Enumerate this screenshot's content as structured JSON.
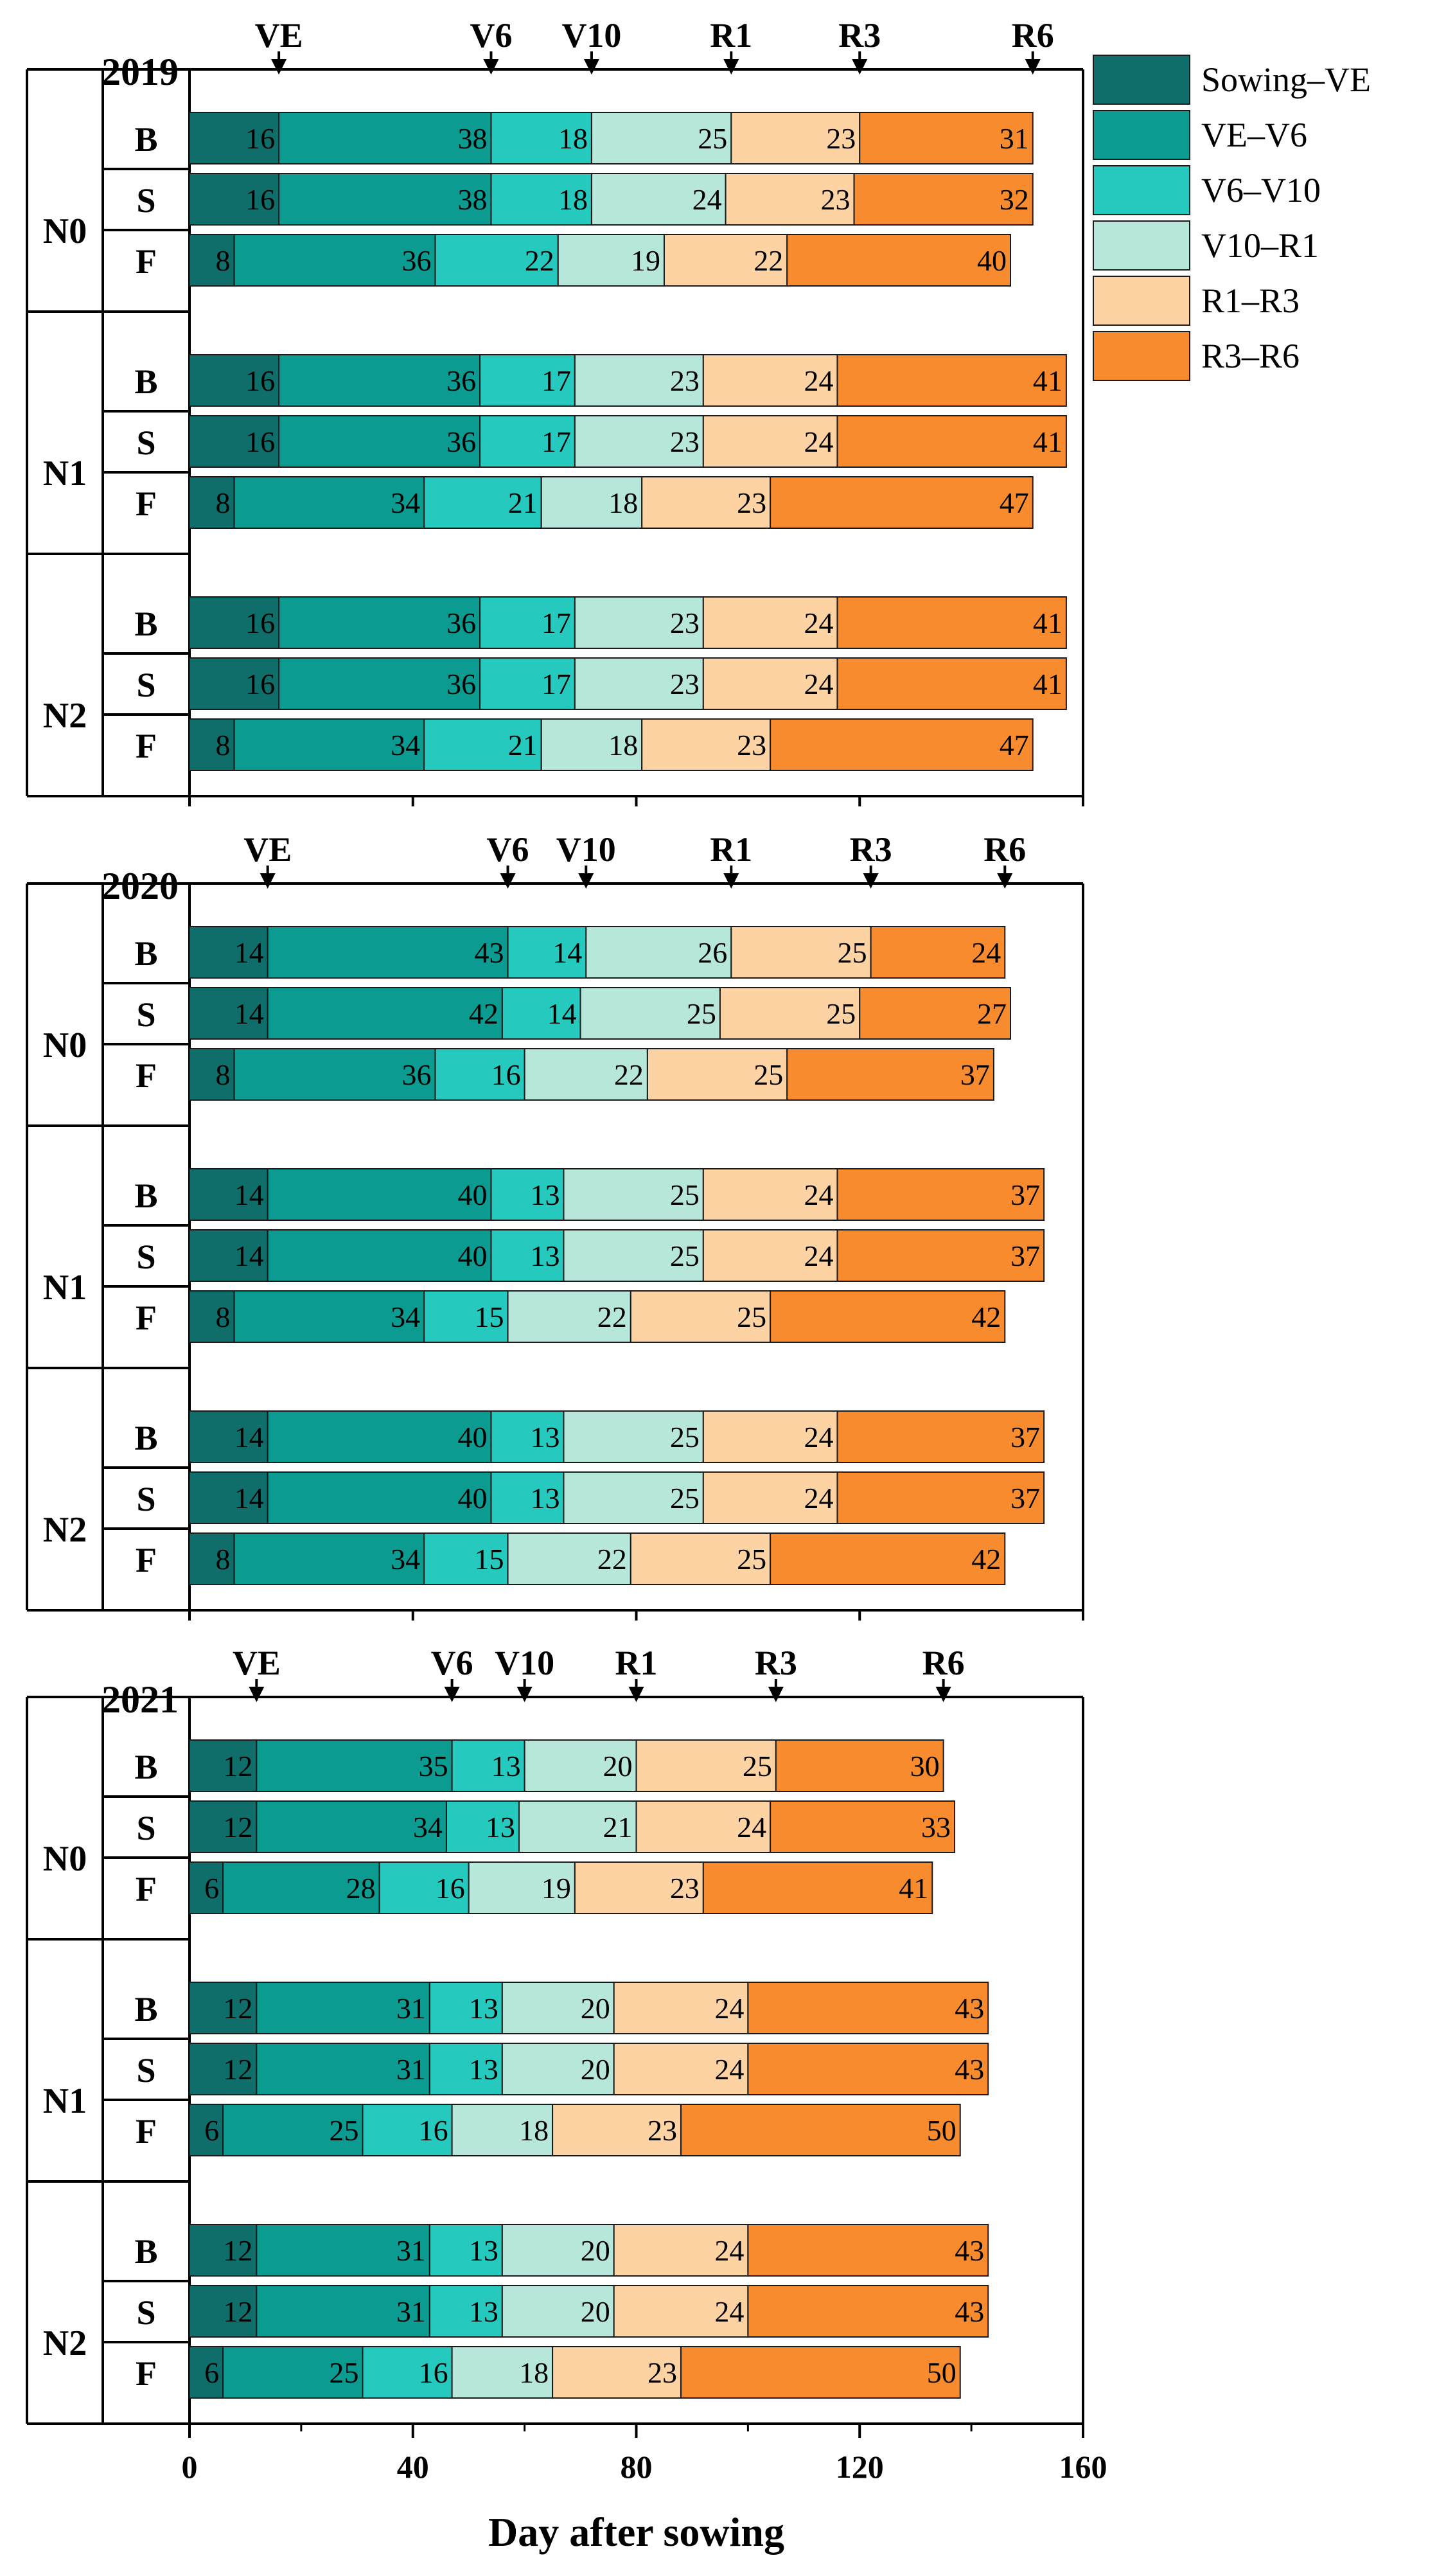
{
  "chart_data": {
    "type": "bar",
    "orientation": "horizontal-stacked",
    "xlabel": "Day after sowing",
    "xlim": [
      0,
      160
    ],
    "xticks": [
      "0",
      "40",
      "80",
      "120",
      "160"
    ],
    "xtick_values": [
      0,
      40,
      80,
      120,
      160
    ],
    "legend_position": "top-right",
    "phases": [
      {
        "name": "Sowing–VE",
        "color": "#0f6e6a"
      },
      {
        "name": "VE–V6",
        "color": "#0b9b91"
      },
      {
        "name": "V6–V10",
        "color": "#26c9bd"
      },
      {
        "name": "V10–R1",
        "color": "#b7e7da"
      },
      {
        "name": "R1–R3",
        "color": "#fdd3a4"
      },
      {
        "name": "R3–R6",
        "color": "#f98b2f"
      }
    ],
    "panels": [
      {
        "year": "2019",
        "markers": [
          {
            "label": "VE",
            "day": 16
          },
          {
            "label": "V6",
            "day": 54
          },
          {
            "label": "V10",
            "day": 72
          },
          {
            "label": "R1",
            "day": 97
          },
          {
            "label": "R3",
            "day": 120
          },
          {
            "label": "R6",
            "day": 151
          }
        ],
        "groups": [
          {
            "name": "N0",
            "rows": [
              {
                "stage": "B",
                "values": [
                  16,
                  38,
                  18,
                  25,
                  23,
                  31
                ]
              },
              {
                "stage": "S",
                "values": [
                  16,
                  38,
                  18,
                  24,
                  23,
                  32
                ]
              },
              {
                "stage": "F",
                "values": [
                  8,
                  36,
                  22,
                  19,
                  22,
                  40
                ]
              }
            ]
          },
          {
            "name": "N1",
            "rows": [
              {
                "stage": "B",
                "values": [
                  16,
                  36,
                  17,
                  23,
                  24,
                  41
                ]
              },
              {
                "stage": "S",
                "values": [
                  16,
                  36,
                  17,
                  23,
                  24,
                  41
                ]
              },
              {
                "stage": "F",
                "values": [
                  8,
                  34,
                  21,
                  18,
                  23,
                  47
                ]
              }
            ]
          },
          {
            "name": "N2",
            "rows": [
              {
                "stage": "B",
                "values": [
                  16,
                  36,
                  17,
                  23,
                  24,
                  41
                ]
              },
              {
                "stage": "S",
                "values": [
                  16,
                  36,
                  17,
                  23,
                  24,
                  41
                ]
              },
              {
                "stage": "F",
                "values": [
                  8,
                  34,
                  21,
                  18,
                  23,
                  47
                ]
              }
            ]
          }
        ]
      },
      {
        "year": "2020",
        "markers": [
          {
            "label": "VE",
            "day": 14
          },
          {
            "label": "V6",
            "day": 57
          },
          {
            "label": "V10",
            "day": 71
          },
          {
            "label": "R1",
            "day": 97
          },
          {
            "label": "R3",
            "day": 122
          },
          {
            "label": "R6",
            "day": 146
          }
        ],
        "groups": [
          {
            "name": "N0",
            "rows": [
              {
                "stage": "B",
                "values": [
                  14,
                  43,
                  14,
                  26,
                  25,
                  24
                ]
              },
              {
                "stage": "S",
                "values": [
                  14,
                  42,
                  14,
                  25,
                  25,
                  27
                ]
              },
              {
                "stage": "F",
                "values": [
                  8,
                  36,
                  16,
                  22,
                  25,
                  37
                ]
              }
            ]
          },
          {
            "name": "N1",
            "rows": [
              {
                "stage": "B",
                "values": [
                  14,
                  40,
                  13,
                  25,
                  24,
                  37
                ]
              },
              {
                "stage": "S",
                "values": [
                  14,
                  40,
                  13,
                  25,
                  24,
                  37
                ]
              },
              {
                "stage": "F",
                "values": [
                  8,
                  34,
                  15,
                  22,
                  25,
                  42
                ]
              }
            ]
          },
          {
            "name": "N2",
            "rows": [
              {
                "stage": "B",
                "values": [
                  14,
                  40,
                  13,
                  25,
                  24,
                  37
                ]
              },
              {
                "stage": "S",
                "values": [
                  14,
                  40,
                  13,
                  25,
                  24,
                  37
                ]
              },
              {
                "stage": "F",
                "values": [
                  8,
                  34,
                  15,
                  22,
                  25,
                  42
                ]
              }
            ]
          }
        ]
      },
      {
        "year": "2021",
        "markers": [
          {
            "label": "VE",
            "day": 12
          },
          {
            "label": "V6",
            "day": 47
          },
          {
            "label": "V10",
            "day": 60
          },
          {
            "label": "R1",
            "day": 80
          },
          {
            "label": "R3",
            "day": 105
          },
          {
            "label": "R6",
            "day": 135
          }
        ],
        "groups": [
          {
            "name": "N0",
            "rows": [
              {
                "stage": "B",
                "values": [
                  12,
                  35,
                  13,
                  20,
                  25,
                  30
                ]
              },
              {
                "stage": "S",
                "values": [
                  12,
                  34,
                  13,
                  21,
                  24,
                  33
                ]
              },
              {
                "stage": "F",
                "values": [
                  6,
                  28,
                  16,
                  19,
                  23,
                  41
                ]
              }
            ]
          },
          {
            "name": "N1",
            "rows": [
              {
                "stage": "B",
                "values": [
                  12,
                  31,
                  13,
                  20,
                  24,
                  43
                ]
              },
              {
                "stage": "S",
                "values": [
                  12,
                  31,
                  13,
                  20,
                  24,
                  43
                ]
              },
              {
                "stage": "F",
                "values": [
                  6,
                  25,
                  16,
                  18,
                  23,
                  50
                ]
              }
            ]
          },
          {
            "name": "N2",
            "rows": [
              {
                "stage": "B",
                "values": [
                  12,
                  31,
                  13,
                  20,
                  24,
                  43
                ]
              },
              {
                "stage": "S",
                "values": [
                  12,
                  31,
                  13,
                  20,
                  24,
                  43
                ]
              },
              {
                "stage": "F",
                "values": [
                  6,
                  25,
                  16,
                  18,
                  23,
                  50
                ]
              }
            ]
          }
        ]
      }
    ]
  }
}
